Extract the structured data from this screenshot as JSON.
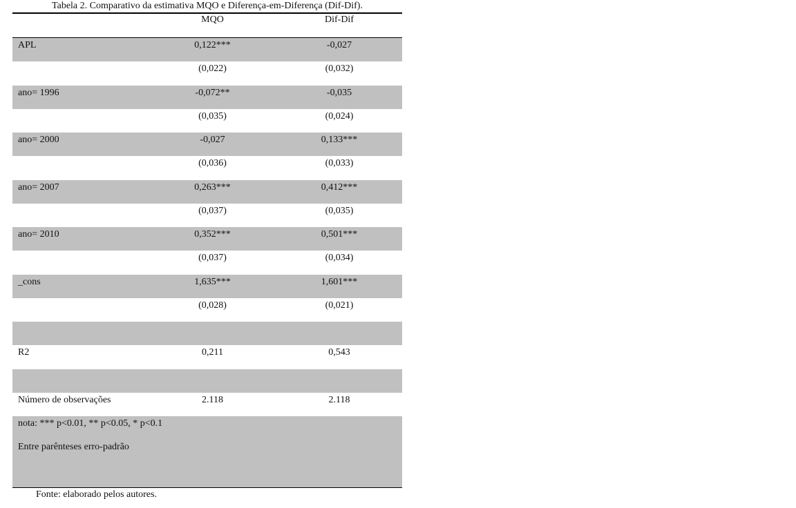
{
  "caption": "Tabela 2. Comparativo da estimativa MQO e Diferença-em-Diferença (Dif-Dif).",
  "columns": [
    "",
    "MQO",
    "Dif-Dif"
  ],
  "rows": [
    {
      "label": "APL",
      "mqo": "0,122***",
      "difdif": "-0,027",
      "shaded": true
    },
    {
      "label": "",
      "mqo": "(0,022)",
      "difdif": "(0,032)",
      "shaded": false
    },
    {
      "label": "ano= 1996",
      "mqo": "-0,072**",
      "difdif": "-0,035",
      "shaded": true
    },
    {
      "label": "",
      "mqo": "(0,035)",
      "difdif": "(0,024)",
      "shaded": false
    },
    {
      "label": "ano=  2000",
      "mqo": "-0,027",
      "difdif": "0,133***",
      "shaded": true
    },
    {
      "label": "",
      "mqo": "(0,036)",
      "difdif": "(0,033)",
      "shaded": false
    },
    {
      "label": "ano= 2007",
      "mqo": "0,263***",
      "difdif": "0,412***",
      "shaded": true
    },
    {
      "label": "",
      "mqo": "(0,037)",
      "difdif": "(0,035)",
      "shaded": false
    },
    {
      "label": "ano= 2010",
      "mqo": "0,352***",
      "difdif": "0,501***",
      "shaded": true
    },
    {
      "label": "",
      "mqo": "(0,037)",
      "difdif": "(0,034)",
      "shaded": false
    },
    {
      "label": "_cons",
      "mqo": "1,635***",
      "difdif": "1,601***",
      "shaded": true
    },
    {
      "label": "",
      "mqo": "(0,028)",
      "difdif": "(0,021)",
      "shaded": false
    },
    {
      "label": "",
      "mqo": "",
      "difdif": "",
      "shaded": true
    },
    {
      "label": "R2",
      "mqo": "0,211",
      "difdif": "0,543",
      "shaded": false
    },
    {
      "label": "",
      "mqo": "",
      "difdif": "",
      "shaded": true
    },
    {
      "label": "Número de observações",
      "mqo": "2.118",
      "difdif": "2.118",
      "shaded": false
    }
  ],
  "notes": [
    "nota:  *** p<0.01, ** p<0.05, * p<0.1",
    "Entre parênteses erro-padrão"
  ],
  "source": "Fonte: elaborado pelos autores.",
  "colors": {
    "shade": "#c0c0c0"
  }
}
